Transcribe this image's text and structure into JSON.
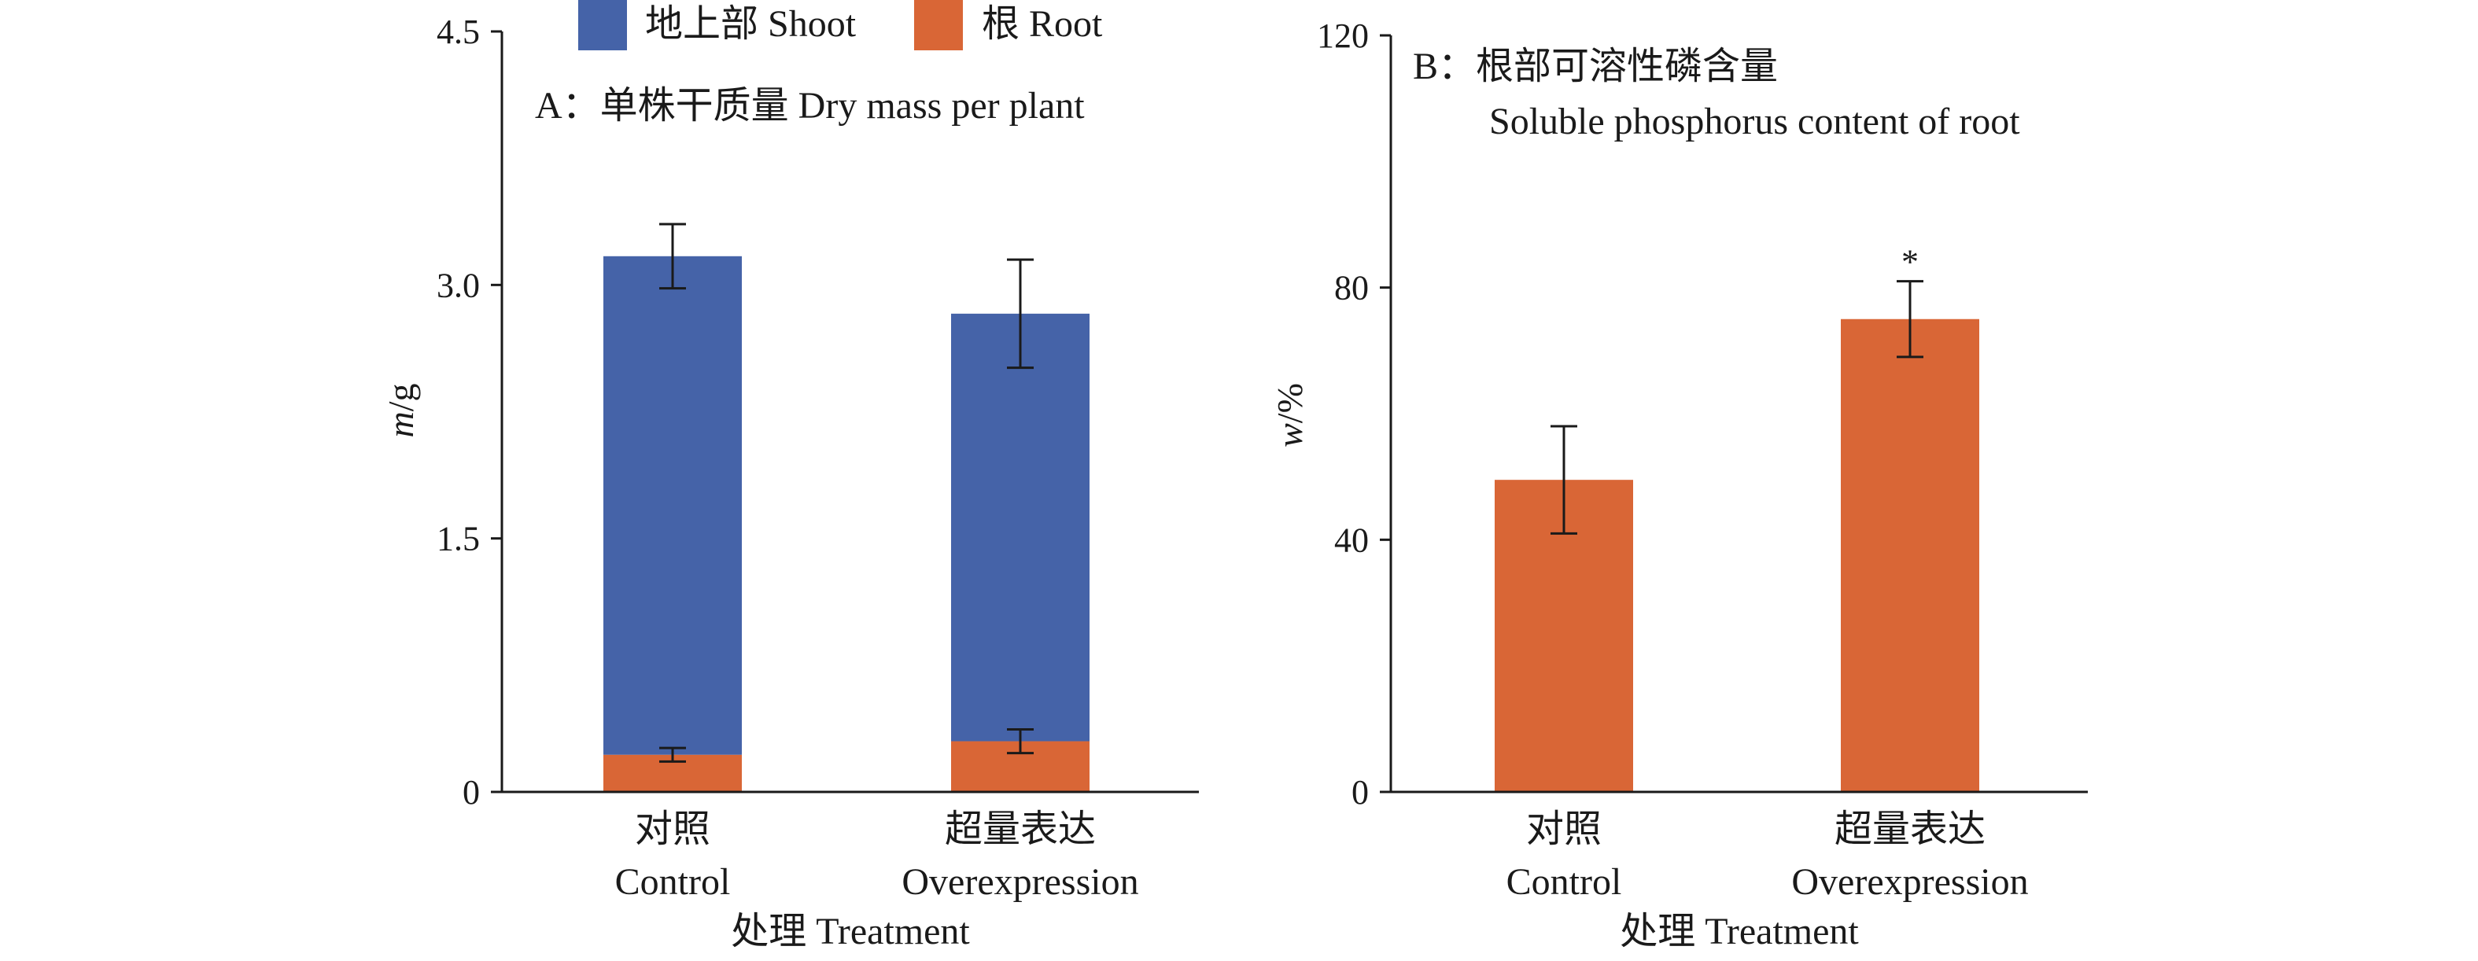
{
  "legend": {
    "items": [
      {
        "label": "地上部 Shoot",
        "color": "#4563a8"
      },
      {
        "label": "根 Root",
        "color": "#d96636"
      }
    ]
  },
  "chart_data": [
    {
      "type": "bar",
      "stacked": true,
      "title": "A：单株干质量  Dry mass per plant",
      "ylabel_var": "m",
      "ylabel_unit": "/g",
      "xlabel": "处理 Treatment",
      "categories": [
        {
          "line1": "对照",
          "line2": "Control"
        },
        {
          "line1": "超量表达",
          "line2": "Overexpression"
        }
      ],
      "ylim": [
        0,
        4.5
      ],
      "yticks": [
        "0",
        "1.5",
        "3.0",
        "4.5"
      ],
      "ytick_values": [
        0,
        1.5,
        3.0,
        4.5
      ],
      "series": [
        {
          "name": "根 Root",
          "color": "#d96636",
          "values": [
            0.22,
            0.3
          ],
          "errors": [
            0.04,
            0.07
          ]
        },
        {
          "name": "地上部 Shoot",
          "color": "#4563a8",
          "values": [
            2.95,
            2.53
          ],
          "errors": [
            0.19,
            0.32
          ]
        }
      ]
    },
    {
      "type": "bar",
      "title_line1": "B：根部可溶性磷含量",
      "title_line2": "Soluble phosphorus content of root",
      "ylabel_var": "w",
      "ylabel_unit": "/%",
      "xlabel": "处理 Treatment",
      "categories": [
        {
          "line1": "对照",
          "line2": "Control"
        },
        {
          "line1": "超量表达",
          "line2": "Overexpression"
        }
      ],
      "ylim": [
        0,
        120
      ],
      "yticks": [
        "0",
        "40",
        "80",
        "120"
      ],
      "ytick_values": [
        0,
        40,
        80,
        120
      ],
      "series": [
        {
          "name": "根 Root",
          "color": "#d96636",
          "values": [
            49.5,
            75.0
          ],
          "errors": [
            8.5,
            6.0
          ],
          "annotations": [
            "",
            "*"
          ]
        }
      ]
    }
  ]
}
